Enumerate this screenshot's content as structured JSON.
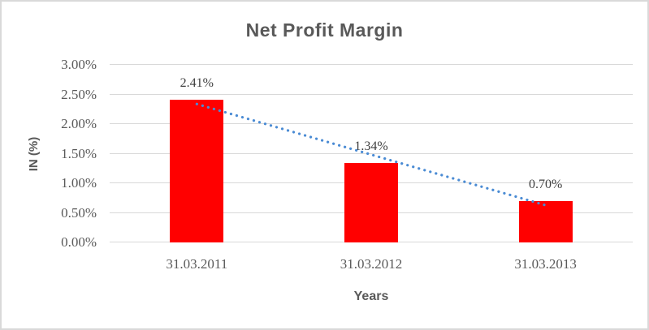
{
  "chart_data": {
    "type": "bar",
    "title": "Net Profit Margin",
    "xlabel": "Years",
    "ylabel": "IN (%)",
    "categories": [
      "31.03.2011",
      "31.03.2012",
      "31.03.2013"
    ],
    "values": [
      2.41,
      1.34,
      0.7
    ],
    "data_labels": [
      "2.41%",
      "1.34%",
      "0.70%"
    ],
    "y_tick_labels": [
      "0.00%",
      "0.50%",
      "1.00%",
      "1.50%",
      "2.00%",
      "2.50%",
      "3.00%"
    ],
    "ylim": [
      0,
      3
    ],
    "grid": true,
    "legend": "none",
    "trendline": {
      "type": "linear",
      "style": "dotted"
    },
    "colors": {
      "bar": "#ff0000",
      "trendline": "#4a8bd4",
      "gridline": "#d9d9d9",
      "axis_text": "#595959",
      "data_label_text": "#3f3f3f",
      "title_text": "#595959",
      "chart_border": "#d9d9d9",
      "background": "#ffffff"
    }
  }
}
